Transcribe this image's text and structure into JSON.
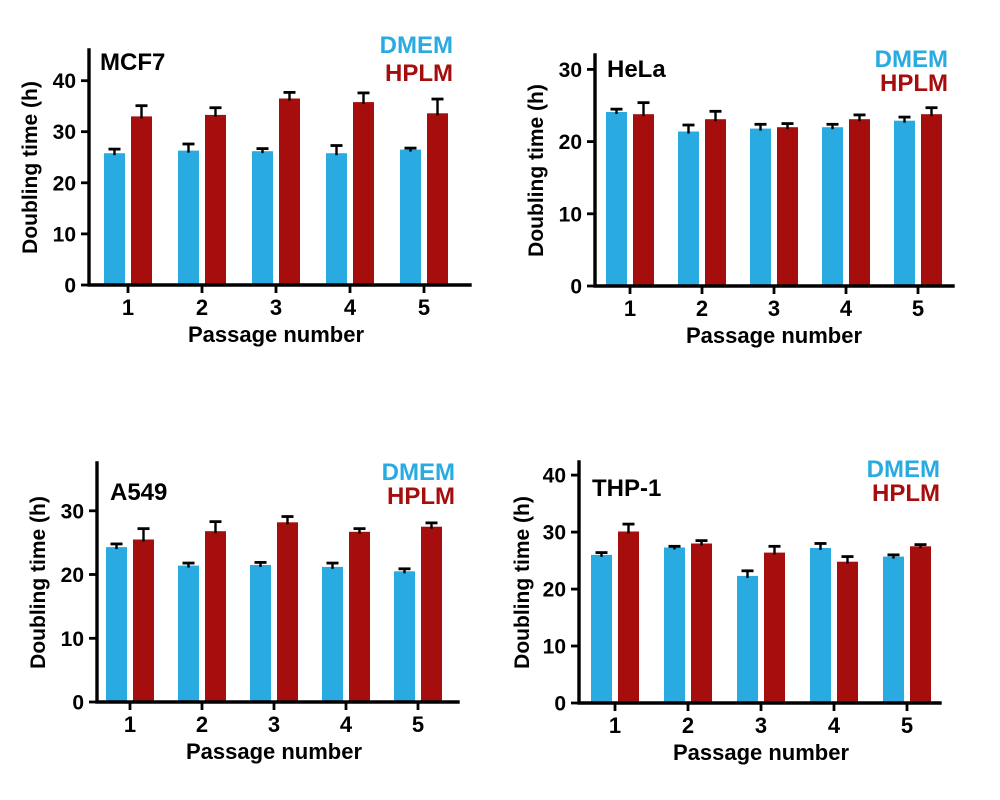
{
  "figure": {
    "background": "#ffffff",
    "text_color": "#000000",
    "description": "Doubling times of four cell lines grown in DMEM vs HPLM across five passages"
  },
  "chart_data": [
    {
      "type": "bar",
      "title": "MCF7",
      "xlabel": "Passage number",
      "ylabel": "Doubling time (h)",
      "categories": [
        "1",
        "2",
        "3",
        "4",
        "5"
      ],
      "yticks": [
        0,
        10,
        20,
        30,
        40
      ],
      "ylim": [
        0,
        46
      ],
      "grid": false,
      "legend_position": "top-right",
      "series": [
        {
          "name": "DMEM",
          "color": "#29ABE2",
          "values": [
            25.8,
            26.3,
            26.2,
            25.8,
            26.5
          ],
          "errors": [
            0.8,
            1.3,
            0.5,
            1.5,
            0.3
          ]
        },
        {
          "name": "HPLM",
          "color": "#A60D0D",
          "values": [
            33.0,
            33.3,
            36.5,
            35.8,
            33.6
          ],
          "errors": [
            2.1,
            1.4,
            1.2,
            1.8,
            2.8
          ]
        }
      ]
    },
    {
      "type": "bar",
      "title": "HeLa",
      "xlabel": "Passage number",
      "ylabel": "Doubling time (h)",
      "categories": [
        "1",
        "2",
        "3",
        "4",
        "5"
      ],
      "yticks": [
        0,
        10,
        20,
        30
      ],
      "ylim": [
        0,
        32
      ],
      "grid": false,
      "legend_position": "top-right",
      "series": [
        {
          "name": "DMEM",
          "color": "#29ABE2",
          "values": [
            24.1,
            21.4,
            21.8,
            22.0,
            22.9
          ],
          "errors": [
            0.4,
            0.9,
            0.6,
            0.4,
            0.5
          ]
        },
        {
          "name": "HPLM",
          "color": "#A60D0D",
          "values": [
            23.8,
            23.1,
            22.0,
            23.1,
            23.8
          ],
          "errors": [
            1.6,
            1.1,
            0.5,
            0.6,
            0.9
          ]
        }
      ]
    },
    {
      "type": "bar",
      "title": "A549",
      "xlabel": "Passage number",
      "ylabel": "Doubling time (h)",
      "categories": [
        "1",
        "2",
        "3",
        "4",
        "5"
      ],
      "yticks": [
        0,
        10,
        20,
        30
      ],
      "ylim": [
        0,
        37.5
      ],
      "grid": false,
      "legend_position": "top-right",
      "series": [
        {
          "name": "DMEM",
          "color": "#29ABE2",
          "values": [
            24.3,
            21.4,
            21.5,
            21.2,
            20.5
          ],
          "errors": [
            0.5,
            0.4,
            0.4,
            0.6,
            0.4
          ]
        },
        {
          "name": "HPLM",
          "color": "#A60D0D",
          "values": [
            25.5,
            26.8,
            28.2,
            26.7,
            27.5
          ],
          "errors": [
            1.7,
            1.5,
            0.9,
            0.5,
            0.6
          ]
        }
      ]
    },
    {
      "type": "bar",
      "title": "THP-1",
      "xlabel": "Passage number",
      "ylabel": "Doubling time (h)",
      "categories": [
        "1",
        "2",
        "3",
        "4",
        "5"
      ],
      "yticks": [
        0,
        10,
        20,
        30,
        40
      ],
      "ylim": [
        0,
        42.3
      ],
      "grid": false,
      "legend_position": "top-right",
      "series": [
        {
          "name": "DMEM",
          "color": "#29ABE2",
          "values": [
            26.0,
            27.3,
            22.3,
            27.2,
            25.7
          ],
          "errors": [
            0.4,
            0.2,
            0.9,
            0.8,
            0.3
          ]
        },
        {
          "name": "HPLM",
          "color": "#A60D0D",
          "values": [
            30.1,
            28.0,
            26.4,
            24.8,
            27.5
          ],
          "errors": [
            1.3,
            0.5,
            1.1,
            0.9,
            0.3
          ]
        }
      ]
    }
  ]
}
